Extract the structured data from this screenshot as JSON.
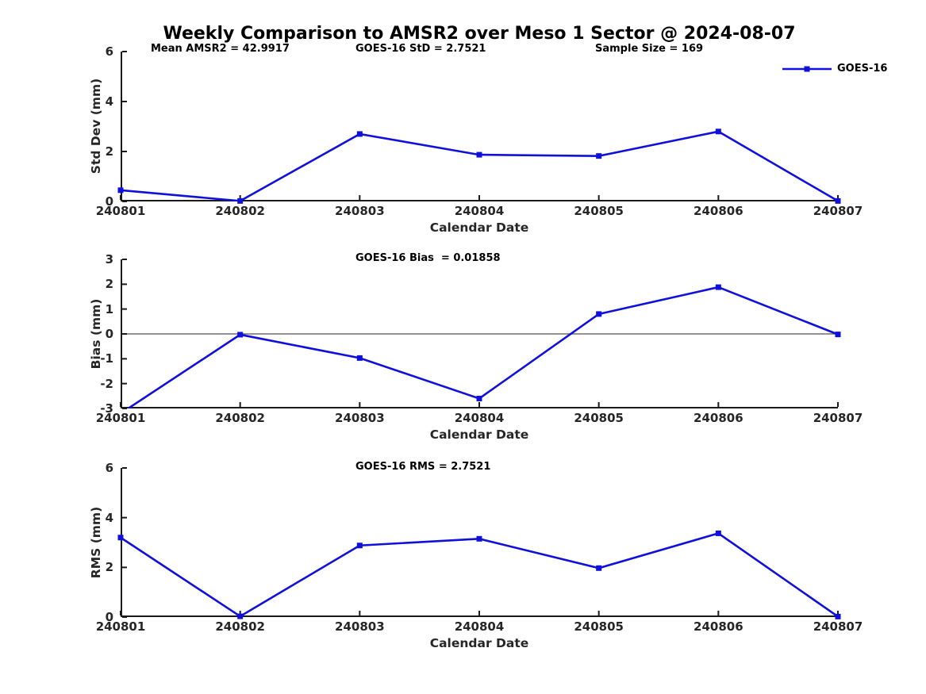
{
  "page": {
    "title": "Weekly Comparison to AMSR2 over Meso 1 Sector @ 2024-08-07"
  },
  "legend": {
    "label": "GOES-16",
    "position": "top-right"
  },
  "colors": {
    "line": "#1010dc",
    "axis": "#1a1a1a",
    "tick_text": "#262626",
    "zero_line": "#6e6e6e",
    "background": "#ffffff"
  },
  "chart_data": [
    {
      "type": "line",
      "id": "std-dev",
      "annotations": [
        "Mean AMSR2 = 42.9917",
        "GOES-16 StD = 2.7521",
        "Sample Size = 169"
      ],
      "categories": [
        "240801",
        "240802",
        "240803",
        "240804",
        "240805",
        "240806",
        "240807"
      ],
      "series": [
        {
          "name": "GOES-16",
          "values": [
            0.45,
            0.02,
            2.7,
            1.87,
            1.82,
            2.8,
            0.02
          ]
        }
      ],
      "xlabel": "Calendar Date",
      "ylabel": "Std Dev (mm)",
      "ylim": [
        0,
        6
      ],
      "yticks": [
        0,
        2,
        4,
        6
      ],
      "grid": false,
      "zero_line": false,
      "legend_label": "GOES-16",
      "marker": "square"
    },
    {
      "type": "line",
      "id": "bias",
      "annotations": [
        "GOES-16 Bias  = 0.01858"
      ],
      "categories": [
        "240801",
        "240802",
        "240803",
        "240804",
        "240805",
        "240806",
        "240807"
      ],
      "series": [
        {
          "name": "GOES-16",
          "values": [
            -3.2,
            -0.03,
            -0.97,
            -2.6,
            0.8,
            1.88,
            -0.02
          ]
        }
      ],
      "xlabel": "Calendar Date",
      "ylabel": "Bias (mm)",
      "ylim": [
        -3,
        3
      ],
      "yticks": [
        -3,
        -2,
        -1,
        0,
        1,
        2,
        3
      ],
      "grid": false,
      "zero_line": true,
      "marker": "square"
    },
    {
      "type": "line",
      "id": "rms",
      "annotations": [
        "GOES-16 RMS = 2.7521"
      ],
      "categories": [
        "240801",
        "240802",
        "240803",
        "240804",
        "240805",
        "240806",
        "240807"
      ],
      "series": [
        {
          "name": "GOES-16",
          "values": [
            3.2,
            0.03,
            2.88,
            3.15,
            1.97,
            3.37,
            0.02
          ]
        }
      ],
      "xlabel": "Calendar Date",
      "ylabel": "RMS (mm)",
      "ylim": [
        0,
        6
      ],
      "yticks": [
        0,
        2,
        4,
        6
      ],
      "grid": false,
      "zero_line": false,
      "marker": "square"
    }
  ]
}
